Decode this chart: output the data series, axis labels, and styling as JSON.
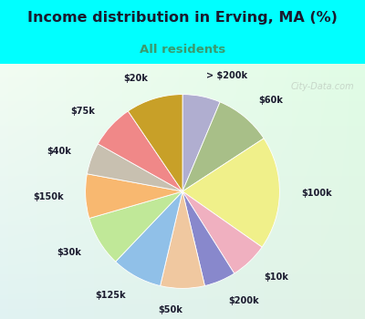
{
  "title": "Income distribution in Erving, MA (%)",
  "subtitle": "All residents",
  "subtitle_color": "#3a9a6e",
  "bg_cyan": "#00ffff",
  "bg_chart_color1": "#e8f5f0",
  "bg_chart_color2": "#d0ece4",
  "watermark": "City-Data.com",
  "labels": [
    "> $200k",
    "$60k",
    "$100k",
    "$10k",
    "$200k",
    "$50k",
    "$125k",
    "$30k",
    "$150k",
    "$40k",
    "$75k",
    "$20k"
  ],
  "values": [
    6,
    9,
    18,
    6,
    5,
    7,
    8,
    8,
    7,
    5,
    7,
    9
  ],
  "colors": [
    "#b0aed0",
    "#a8bf88",
    "#f0f08a",
    "#f0b0c0",
    "#8888cc",
    "#f0c8a0",
    "#90c0e8",
    "#c0e898",
    "#f8b870",
    "#c8c0b0",
    "#f08888",
    "#c8a028"
  ],
  "startangle": 90,
  "label_fontsize": 7,
  "title_fontsize": 11.5,
  "subtitle_fontsize": 9.5
}
